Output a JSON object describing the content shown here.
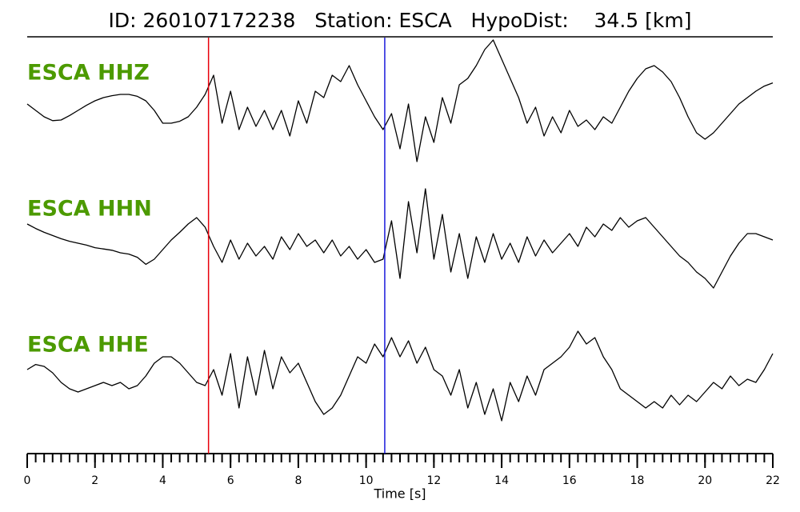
{
  "chart_data": {
    "type": "line",
    "title": "ID: 260107172238   Station: ESCA   HypoDist:    34.5 [km]",
    "xlabel": "Time [s]",
    "xlim": [
      0,
      22
    ],
    "xticks": [
      0,
      2,
      4,
      6,
      8,
      10,
      12,
      14,
      16,
      18,
      20,
      22
    ],
    "xminor_step": 0.25,
    "ylim": [
      -1,
      1
    ],
    "label_color": "#4c9a00",
    "vlines": [
      {
        "x": 5.35,
        "color": "#e8000b"
      },
      {
        "x": 10.55,
        "color": "#1a1adb"
      }
    ],
    "x": [
      0,
      0.25,
      0.5,
      0.75,
      1,
      1.25,
      1.5,
      1.75,
      2,
      2.25,
      2.5,
      2.75,
      3,
      3.25,
      3.5,
      3.75,
      4,
      4.25,
      4.5,
      4.75,
      5,
      5.25,
      5.5,
      5.75,
      6,
      6.25,
      6.5,
      6.75,
      7,
      7.25,
      7.5,
      7.75,
      8,
      8.25,
      8.5,
      8.75,
      9,
      9.25,
      9.5,
      9.75,
      10,
      10.25,
      10.5,
      10.75,
      11,
      11.25,
      11.5,
      11.75,
      12,
      12.25,
      12.5,
      12.75,
      13,
      13.25,
      13.5,
      13.75,
      14,
      14.25,
      14.5,
      14.75,
      15,
      15.25,
      15.5,
      15.75,
      16,
      16.25,
      16.5,
      16.75,
      17,
      17.25,
      17.5,
      17.75,
      18,
      18.25,
      18.5,
      18.75,
      19,
      19.25,
      19.5,
      19.75,
      20,
      20.25,
      20.5,
      20.75,
      21,
      21.25,
      21.5,
      21.75,
      22
    ],
    "series": [
      {
        "name": "ESCA HHZ",
        "color": "#000000",
        "values": [
          0.0,
          -0.1,
          -0.2,
          -0.26,
          -0.25,
          -0.18,
          -0.1,
          -0.02,
          0.05,
          0.1,
          0.13,
          0.15,
          0.15,
          0.12,
          0.05,
          -0.1,
          -0.3,
          -0.3,
          -0.27,
          -0.2,
          -0.05,
          0.15,
          0.45,
          -0.3,
          0.2,
          -0.4,
          -0.05,
          -0.35,
          -0.1,
          -0.4,
          -0.1,
          -0.5,
          0.05,
          -0.3,
          0.2,
          0.1,
          0.45,
          0.35,
          0.6,
          0.3,
          0.05,
          -0.2,
          -0.4,
          -0.15,
          -0.7,
          0.0,
          -0.9,
          -0.2,
          -0.6,
          0.1,
          -0.3,
          0.3,
          0.4,
          0.6,
          0.85,
          1.0,
          0.7,
          0.4,
          0.1,
          -0.3,
          -0.05,
          -0.5,
          -0.2,
          -0.45,
          -0.1,
          -0.35,
          -0.25,
          -0.4,
          -0.2,
          -0.3,
          -0.05,
          0.2,
          0.4,
          0.55,
          0.6,
          0.5,
          0.35,
          0.1,
          -0.2,
          -0.45,
          -0.55,
          -0.45,
          -0.3,
          -0.15,
          0.0,
          0.1,
          0.2,
          0.28,
          0.33
        ]
      },
      {
        "name": "ESCA HHN",
        "color": "#000000",
        "values": [
          0.25,
          0.18,
          0.12,
          0.07,
          0.02,
          -0.02,
          -0.05,
          -0.08,
          -0.12,
          -0.14,
          -0.16,
          -0.2,
          -0.22,
          -0.27,
          -0.38,
          -0.3,
          -0.15,
          0.0,
          0.12,
          0.25,
          0.35,
          0.2,
          -0.1,
          -0.35,
          0.0,
          -0.3,
          -0.05,
          -0.25,
          -0.1,
          -0.3,
          0.05,
          -0.15,
          0.1,
          -0.1,
          0.0,
          -0.2,
          0.0,
          -0.25,
          -0.1,
          -0.3,
          -0.15,
          -0.35,
          -0.3,
          0.3,
          -0.6,
          0.6,
          -0.2,
          0.8,
          -0.3,
          0.4,
          -0.5,
          0.1,
          -0.6,
          0.05,
          -0.35,
          0.1,
          -0.3,
          -0.05,
          -0.35,
          0.05,
          -0.25,
          0.0,
          -0.2,
          -0.05,
          0.1,
          -0.1,
          0.2,
          0.05,
          0.25,
          0.15,
          0.35,
          0.2,
          0.3,
          0.35,
          0.2,
          0.05,
          -0.1,
          -0.25,
          -0.35,
          -0.5,
          -0.6,
          -0.75,
          -0.5,
          -0.25,
          -0.05,
          0.1,
          0.1,
          0.05,
          0.0
        ]
      },
      {
        "name": "ESCA HHE",
        "color": "#000000",
        "values": [
          0.1,
          0.18,
          0.15,
          0.05,
          -0.1,
          -0.2,
          -0.25,
          -0.2,
          -0.15,
          -0.1,
          -0.15,
          -0.1,
          -0.2,
          -0.15,
          0.0,
          0.2,
          0.3,
          0.3,
          0.2,
          0.05,
          -0.1,
          -0.15,
          0.1,
          -0.3,
          0.35,
          -0.5,
          0.3,
          -0.3,
          0.4,
          -0.2,
          0.3,
          0.05,
          0.2,
          -0.1,
          -0.4,
          -0.6,
          -0.5,
          -0.3,
          0.0,
          0.3,
          0.2,
          0.5,
          0.3,
          0.6,
          0.3,
          0.55,
          0.2,
          0.45,
          0.1,
          0.0,
          -0.3,
          0.1,
          -0.5,
          -0.1,
          -0.6,
          -0.2,
          -0.7,
          -0.1,
          -0.4,
          0.0,
          -0.3,
          0.1,
          0.2,
          0.3,
          0.45,
          0.7,
          0.5,
          0.6,
          0.3,
          0.1,
          -0.2,
          -0.3,
          -0.4,
          -0.5,
          -0.4,
          -0.5,
          -0.3,
          -0.45,
          -0.3,
          -0.4,
          -0.25,
          -0.1,
          -0.2,
          0.0,
          -0.15,
          -0.05,
          -0.1,
          0.1,
          0.35
        ]
      }
    ]
  }
}
